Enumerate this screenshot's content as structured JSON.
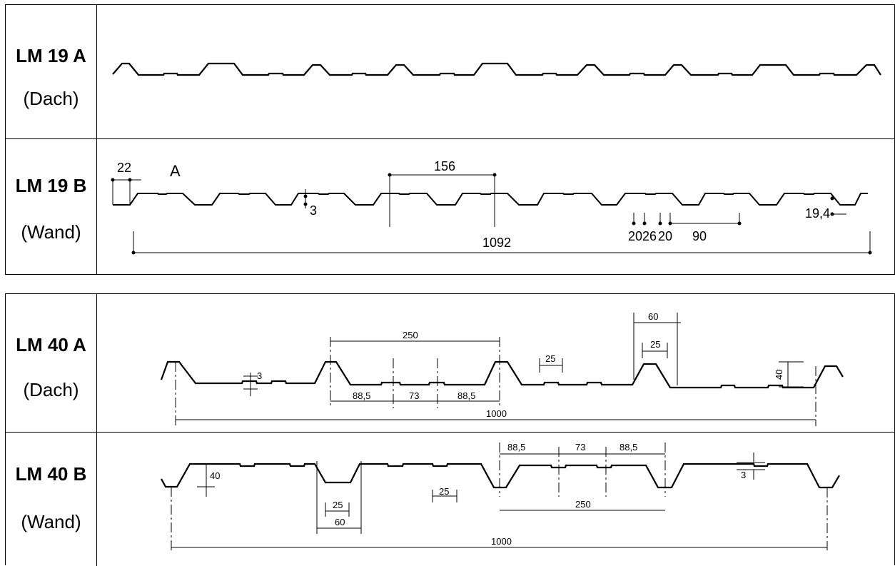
{
  "tables": [
    {
      "rows": [
        {
          "code": "LM 19 A",
          "use": "(Dach)",
          "dims": {}
        },
        {
          "code": "LM 19 B",
          "use": "(Wand)",
          "dims": {
            "d22": "22",
            "a": "A",
            "d156": "156",
            "d3": "3",
            "d1092": "1092",
            "d20a": "20",
            "d26": "26",
            "d20b": "20",
            "d90": "90",
            "d194": "19,4"
          }
        }
      ]
    },
    {
      "rows": [
        {
          "code": "LM 40 A",
          "use": "(Dach)",
          "dims": {
            "d250": "250",
            "d60": "60",
            "d25a": "25",
            "d25b": "25",
            "d3": "3",
            "d40": "40",
            "d885a": "88,5",
            "d73": "73",
            "d885b": "88,5",
            "d1000": "1000"
          }
        },
        {
          "code": "LM 40 B",
          "use": "(Wand)",
          "dims": {
            "d40": "40",
            "d885a": "88,5",
            "d73": "73",
            "d885b": "88,5",
            "d25a": "25",
            "d25b": "25",
            "d60": "60",
            "d250": "250",
            "d3": "3",
            "d1000": "1000"
          }
        }
      ]
    }
  ]
}
